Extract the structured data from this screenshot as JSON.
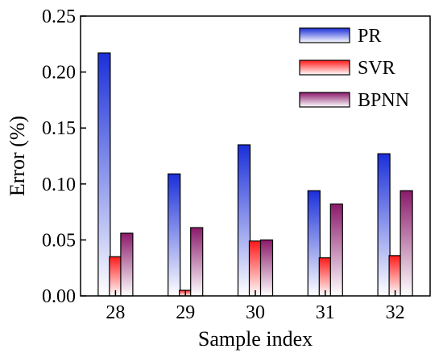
{
  "chart_data": {
    "type": "bar",
    "categories": [
      "28",
      "29",
      "30",
      "31",
      "32"
    ],
    "series": [
      {
        "name": "PR",
        "values": [
          0.217,
          0.109,
          0.135,
          0.094,
          0.127
        ],
        "color_top": "#1b2fd9",
        "color_bottom": "#ffffff"
      },
      {
        "name": "SVR",
        "values": [
          0.035,
          0.005,
          0.049,
          0.034,
          0.036
        ],
        "color_top": "#ff1a1a",
        "color_bottom": "#ffffff"
      },
      {
        "name": "BPNN",
        "values": [
          0.056,
          0.061,
          0.05,
          0.082,
          0.094
        ],
        "color_top": "#8b1a6b",
        "color_bottom": "#ffffff"
      }
    ],
    "xlabel": "Sample index",
    "ylabel": "Error (%)",
    "ylim": [
      0,
      0.25
    ],
    "yticks": [
      "0.00",
      "0.05",
      "0.10",
      "0.15",
      "0.20",
      "0.25"
    ],
    "legend_position": "top-right",
    "grid": false
  }
}
